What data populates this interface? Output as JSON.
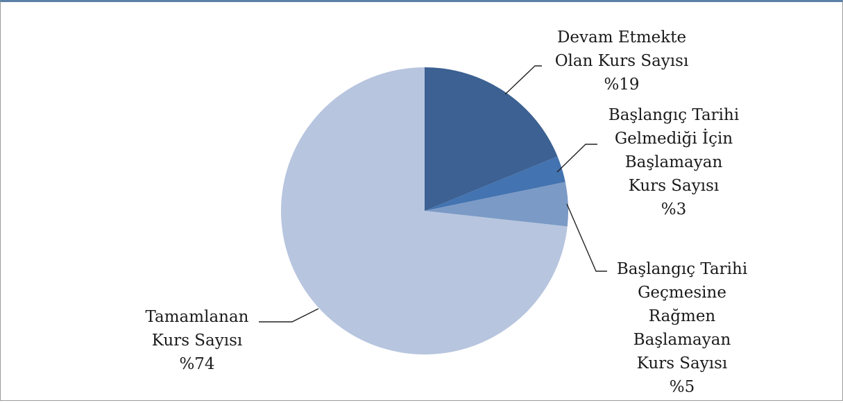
{
  "chart_data": {
    "type": "pie",
    "title": "",
    "start_angle_deg": 0,
    "direction": "clockwise",
    "slices": [
      {
        "label_lines": [
          "Devam Etmekte",
          "Olan Kurs Sayısı",
          "%19"
        ],
        "value": 19,
        "color": "#3c6192"
      },
      {
        "label_lines": [
          "Başlangıç Tarihi",
          "Gelmediği İçin",
          "Başlamayan",
          "Kurs Sayısı",
          "%3"
        ],
        "value": 3,
        "color": "#4373b0"
      },
      {
        "label_lines": [
          "Başlangıç Tarihi",
          "Geçmesine",
          "Rağmen",
          "Başlamayan",
          "Kurs Sayısı",
          "%5"
        ],
        "value": 5,
        "color": "#7b9ac6"
      },
      {
        "label_lines": [
          "Tamamlanan",
          "Kurs Sayısı",
          "%74"
        ],
        "value": 74,
        "color": "#b7c5df"
      }
    ]
  }
}
